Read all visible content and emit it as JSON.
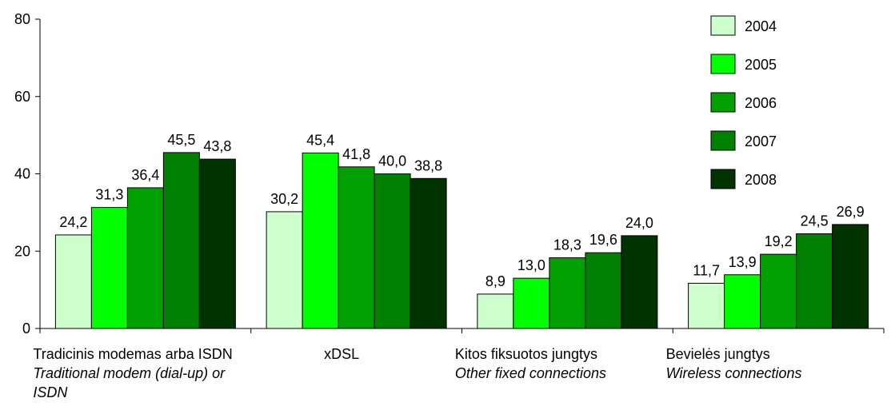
{
  "chart_data": {
    "type": "bar",
    "categories": [
      [
        "Tradicinis modemas arba ISDN",
        "Traditional  modem (dial-up) or",
        "ISDN"
      ],
      [
        "xDSL"
      ],
      [
        "Kitos fiksuotos jungtys",
        "Other fixed connections"
      ],
      [
        "Bevielės jungtys",
        "Wireless connections"
      ]
    ],
    "series": [
      {
        "name": "2004",
        "color": "#ccffcc",
        "values": [
          24.2,
          30.2,
          8.9,
          11.7
        ],
        "labels": [
          "24,2",
          "30,2",
          "8,9",
          "11,7"
        ]
      },
      {
        "name": "2005",
        "color": "#00ff00",
        "values": [
          31.3,
          45.4,
          13.0,
          13.9
        ],
        "labels": [
          "31,3",
          "45,4",
          "13,0",
          "13,9"
        ]
      },
      {
        "name": "2006",
        "color": "#00a000",
        "values": [
          36.4,
          41.8,
          18.3,
          19.2
        ],
        "labels": [
          "36,4",
          "41,8",
          "18,3",
          "19,2"
        ]
      },
      {
        "name": "2007",
        "color": "#008000",
        "values": [
          45.5,
          40.0,
          19.6,
          24.5
        ],
        "labels": [
          "45,5",
          "40,0",
          "19,6",
          "24,5"
        ]
      },
      {
        "name": "2008",
        "color": "#003300",
        "values": [
          43.8,
          38.8,
          24.0,
          26.9
        ],
        "labels": [
          "43,8",
          "38,8",
          "24,0",
          "26,9"
        ]
      }
    ],
    "yticks": [
      0,
      20,
      40,
      60,
      80
    ],
    "ylim": [
      0,
      80
    ],
    "grid": false,
    "legend_position": "top-right",
    "title": "",
    "xlabel": "",
    "ylabel": ""
  }
}
